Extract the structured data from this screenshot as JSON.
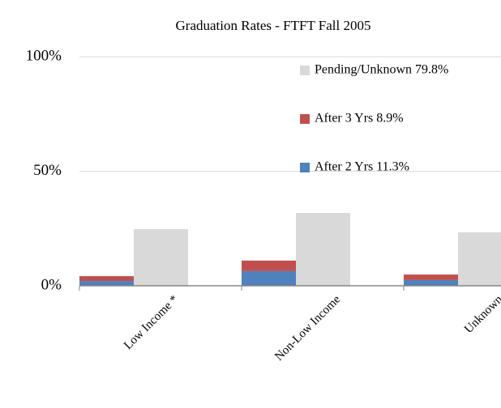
{
  "chart_data": {
    "type": "bar",
    "title": "Graduation Rates - FTFT Fall 2005",
    "categories": [
      "Low Income *",
      "Non-Low Income",
      "Unknown"
    ],
    "series": [
      {
        "name": "After 2 Yrs  11.3%",
        "color": "#4f81bd",
        "stack": 0,
        "values": [
          2.1,
          6.4,
          2.5
        ]
      },
      {
        "name": "After 3 Yrs  8.9%",
        "color": "#c0504d",
        "stack": 0,
        "values": [
          2.1,
          4.6,
          2.4
        ]
      },
      {
        "name": "Pending/Unknown 79.8%",
        "color": "#d9d9d9",
        "stack": 1,
        "values": [
          24.7,
          31.8,
          23.3
        ]
      }
    ],
    "ylim": [
      0,
      100
    ],
    "yticks": [
      {
        "value": 0,
        "label": "0%"
      },
      {
        "value": 50,
        "label": "50%"
      },
      {
        "value": 100,
        "label": "100%"
      }
    ],
    "grid": true,
    "legend": "top-right"
  }
}
